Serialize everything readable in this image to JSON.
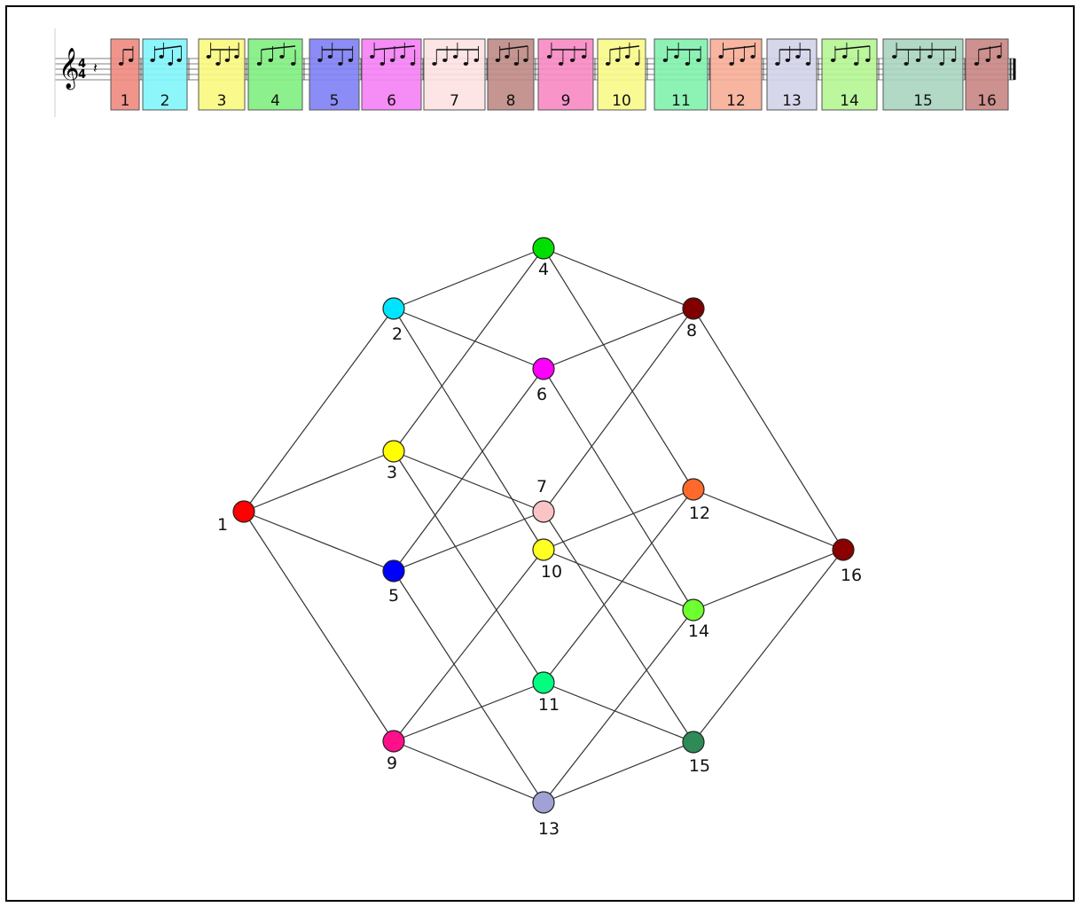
{
  "measures": [
    {
      "label": "1",
      "color": "#f08a80"
    },
    {
      "label": "2",
      "color": "#7ff5fb"
    },
    {
      "label": "3",
      "color": "#fafa80"
    },
    {
      "label": "4",
      "color": "#80f080"
    },
    {
      "label": "5",
      "color": "#8080f5"
    },
    {
      "label": "6",
      "color": "#f580f5"
    },
    {
      "label": "7",
      "color": "#fde2e2"
    },
    {
      "label": "8",
      "color": "#bf8a85"
    },
    {
      "label": "9",
      "color": "#f888c3"
    },
    {
      "label": "10",
      "color": "#fafa8a"
    },
    {
      "label": "11",
      "color": "#80f2ad"
    },
    {
      "label": "12",
      "color": "#f7ad96"
    },
    {
      "label": "13",
      "color": "#d3d3ea"
    },
    {
      "label": "14",
      "color": "#b5f592"
    },
    {
      "label": "15",
      "color": "#a9d5bf"
    },
    {
      "label": "16",
      "color": "#c88583"
    }
  ],
  "nodes": [
    {
      "label": "1",
      "color": "#ff0000"
    },
    {
      "label": "2",
      "color": "#00e5ff"
    },
    {
      "label": "3",
      "color": "#ffff00"
    },
    {
      "label": "4",
      "color": "#00e000"
    },
    {
      "label": "5",
      "color": "#0000ff"
    },
    {
      "label": "6",
      "color": "#ff00ff"
    },
    {
      "label": "7",
      "color": "#fbc4c4"
    },
    {
      "label": "8",
      "color": "#800000"
    },
    {
      "label": "9",
      "color": "#ff0f8a"
    },
    {
      "label": "10",
      "color": "#ffff22"
    },
    {
      "label": "11",
      "color": "#00ff7f"
    },
    {
      "label": "12",
      "color": "#ff6a2c"
    },
    {
      "label": "13",
      "color": "#a1a1d6"
    },
    {
      "label": "14",
      "color": "#6eff2e"
    },
    {
      "label": "15",
      "color": "#2e8b57"
    },
    {
      "label": "16",
      "color": "#8b0000"
    }
  ],
  "edges": [
    [
      1,
      2
    ],
    [
      1,
      3
    ],
    [
      1,
      5
    ],
    [
      1,
      9
    ],
    [
      2,
      4
    ],
    [
      2,
      6
    ],
    [
      2,
      10
    ],
    [
      3,
      4
    ],
    [
      3,
      7
    ],
    [
      3,
      11
    ],
    [
      4,
      8
    ],
    [
      4,
      12
    ],
    [
      5,
      6
    ],
    [
      5,
      7
    ],
    [
      5,
      13
    ],
    [
      6,
      8
    ],
    [
      6,
      14
    ],
    [
      7,
      8
    ],
    [
      7,
      15
    ],
    [
      8,
      16
    ],
    [
      9,
      10
    ],
    [
      9,
      11
    ],
    [
      9,
      13
    ],
    [
      10,
      12
    ],
    [
      10,
      14
    ],
    [
      11,
      12
    ],
    [
      11,
      15
    ],
    [
      12,
      16
    ],
    [
      13,
      14
    ],
    [
      13,
      15
    ],
    [
      14,
      16
    ],
    [
      15,
      16
    ]
  ]
}
